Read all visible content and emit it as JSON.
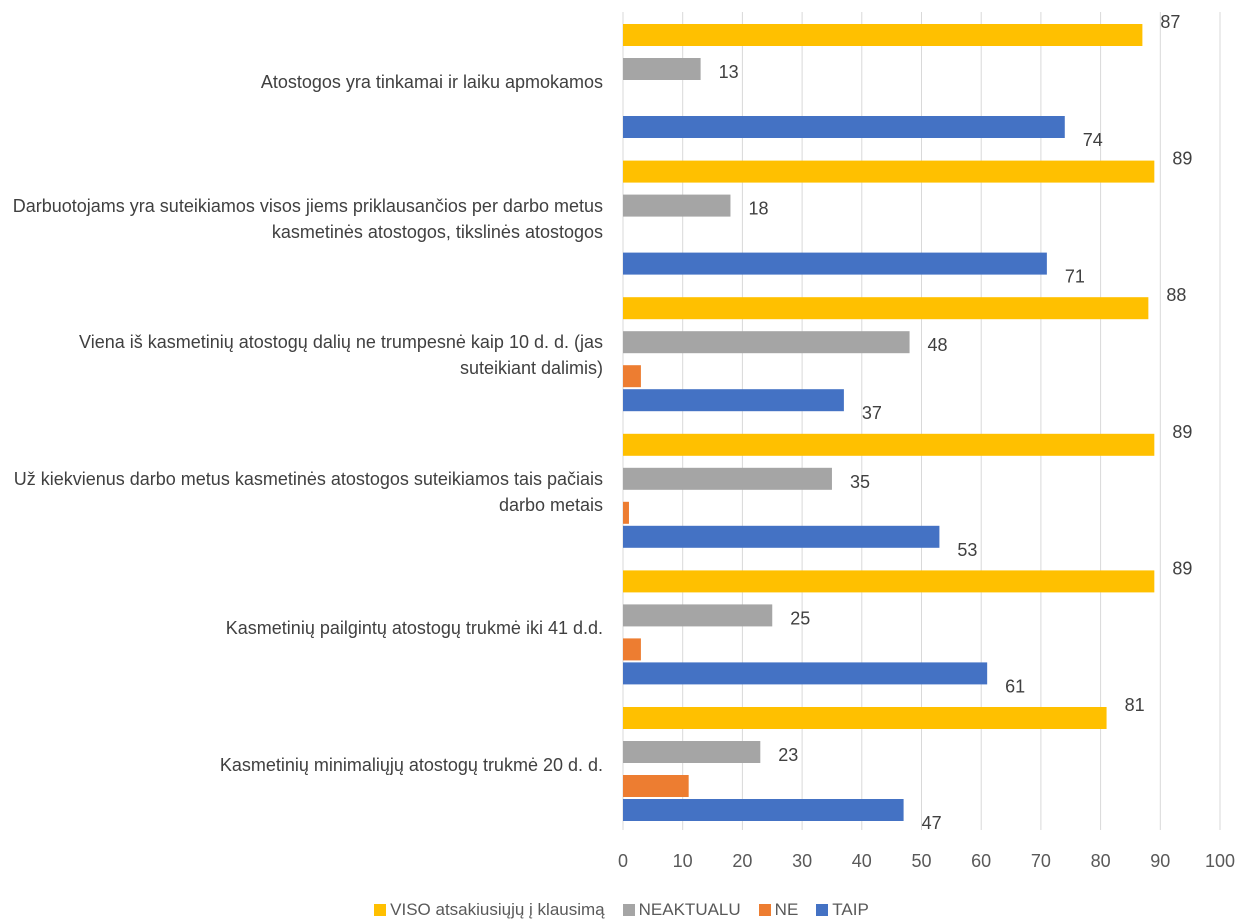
{
  "chart_data": {
    "type": "bar",
    "orientation": "horizontal",
    "categories": [
      "Atostogos yra tinkamai ir laiku apmokamos",
      "Darbuotojams yra suteikiamos visos jiems priklausančios per darbo metus kasmetinės atostogos, tikslinės atostogos",
      "Viena iš kasmetinių atostogų dalių ne trumpesnė kaip 10 d. d. (jas suteikiant dalimis)",
      "Už kiekvienus darbo metus kasmetinės atostogos suteikiamos tais pačiais darbo metais",
      "Kasmetinių pailgintų atostogų trukmė iki 41 d.d.",
      "Kasmetinių minimaliųjų atostogų trukmė 20 d. d."
    ],
    "series": [
      {
        "name": "VISO atsakiusiųjų į klausimą",
        "color": "#FFC000",
        "values": [
          87,
          89,
          88,
          89,
          89,
          81
        ],
        "labels": [
          "87",
          "89",
          "88",
          "89",
          "89",
          "81"
        ]
      },
      {
        "name": "NEAKTUALU",
        "color": "#A5A5A5",
        "values": [
          13,
          18,
          48,
          35,
          25,
          23
        ],
        "labels": [
          "13",
          "18",
          "48",
          "35",
          "25",
          "23"
        ]
      },
      {
        "name": "NE",
        "color": "#ED7D31",
        "values": [
          0,
          0,
          3,
          1,
          3,
          11
        ],
        "labels": [
          "",
          "",
          "",
          "",
          "",
          ""
        ]
      },
      {
        "name": "TAIP",
        "color": "#4472C4",
        "values": [
          74,
          71,
          37,
          53,
          61,
          47
        ],
        "labels": [
          "74",
          "71",
          "37",
          "53",
          "61",
          "47"
        ]
      }
    ],
    "xlim": [
      0,
      100
    ],
    "xticks": [
      "0",
      "10",
      "20",
      "30",
      "40",
      "50",
      "60",
      "70",
      "80",
      "90",
      "100"
    ],
    "grid": "vertical",
    "legend_position": "bottom",
    "title": "",
    "xlabel": "",
    "ylabel": ""
  }
}
